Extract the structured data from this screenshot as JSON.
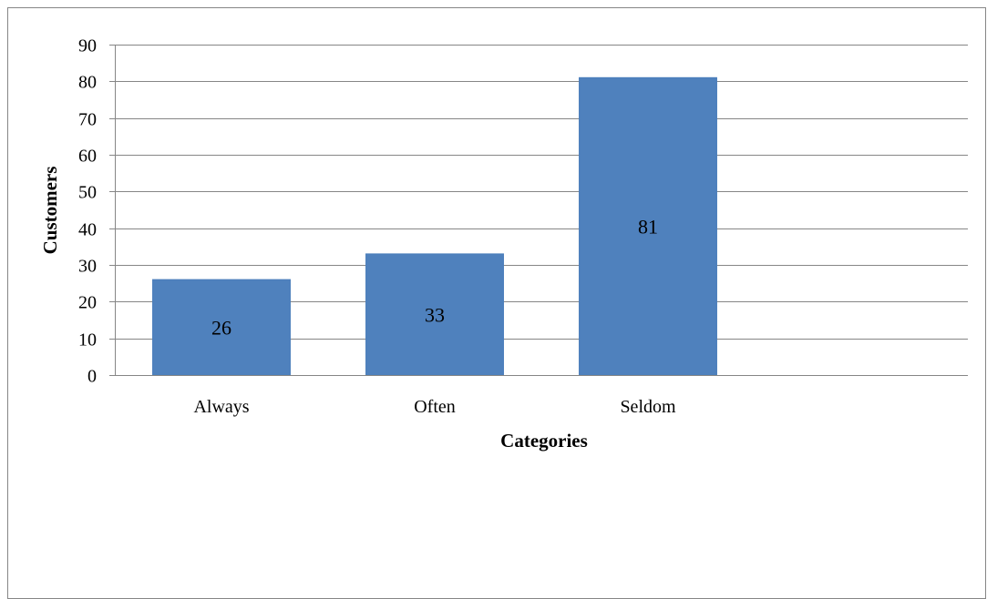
{
  "chart_data": {
    "type": "bar",
    "categories": [
      "Always",
      "Often",
      "Seldom"
    ],
    "values": [
      26,
      33,
      81
    ],
    "data_labels": [
      "26",
      "33",
      "81"
    ],
    "title": "",
    "xlabel": "Categories",
    "ylabel": "Customers",
    "ylim": [
      0,
      90
    ],
    "yticks": [
      0,
      10,
      20,
      30,
      40,
      50,
      60,
      70,
      80,
      90
    ],
    "ytick_labels": [
      "0",
      "10",
      "20",
      "30",
      "40",
      "50",
      "60",
      "70",
      "80",
      "90"
    ],
    "category_slots": 4,
    "grid": true,
    "legend": "none",
    "colors": {
      "bar": "#4f81bd",
      "bar_edge": "#4a7ebb",
      "grid": "#868686",
      "frame": "#868686",
      "text": "#000000"
    }
  }
}
